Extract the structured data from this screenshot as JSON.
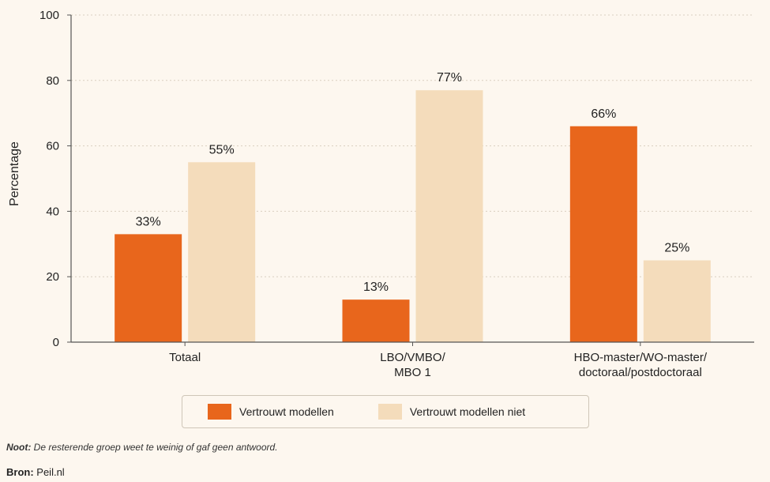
{
  "chart_data": {
    "type": "bar",
    "categories": [
      [
        "Totaal"
      ],
      [
        "LBO/VMBO/",
        "MBO 1"
      ],
      [
        "HBO-master/WO-master/",
        "doctoraal/postdoctoraal"
      ]
    ],
    "series": [
      {
        "name": "Vertrouwt modellen",
        "values": [
          33,
          13,
          66
        ],
        "labels": [
          "33%",
          "13%",
          "66%"
        ],
        "color": "#e8661c"
      },
      {
        "name": "Vertrouwt modellen niet",
        "values": [
          55,
          77,
          25
        ],
        "labels": [
          "55%",
          "77%",
          "25%"
        ],
        "color": "#f4dcbb"
      }
    ],
    "ylabel": "Percentage",
    "xlabel": "",
    "ylim": [
      0,
      100
    ],
    "yticks": [
      0,
      20,
      40,
      60,
      80,
      100
    ],
    "grid": "horizontal-dotted",
    "legend": "bottom"
  },
  "note": {
    "prefix": "Noot:",
    "text": " De resterende groep weet te weinig of gaf geen antwoord."
  },
  "source": {
    "prefix": "Bron:",
    "text": " Peil.nl"
  }
}
